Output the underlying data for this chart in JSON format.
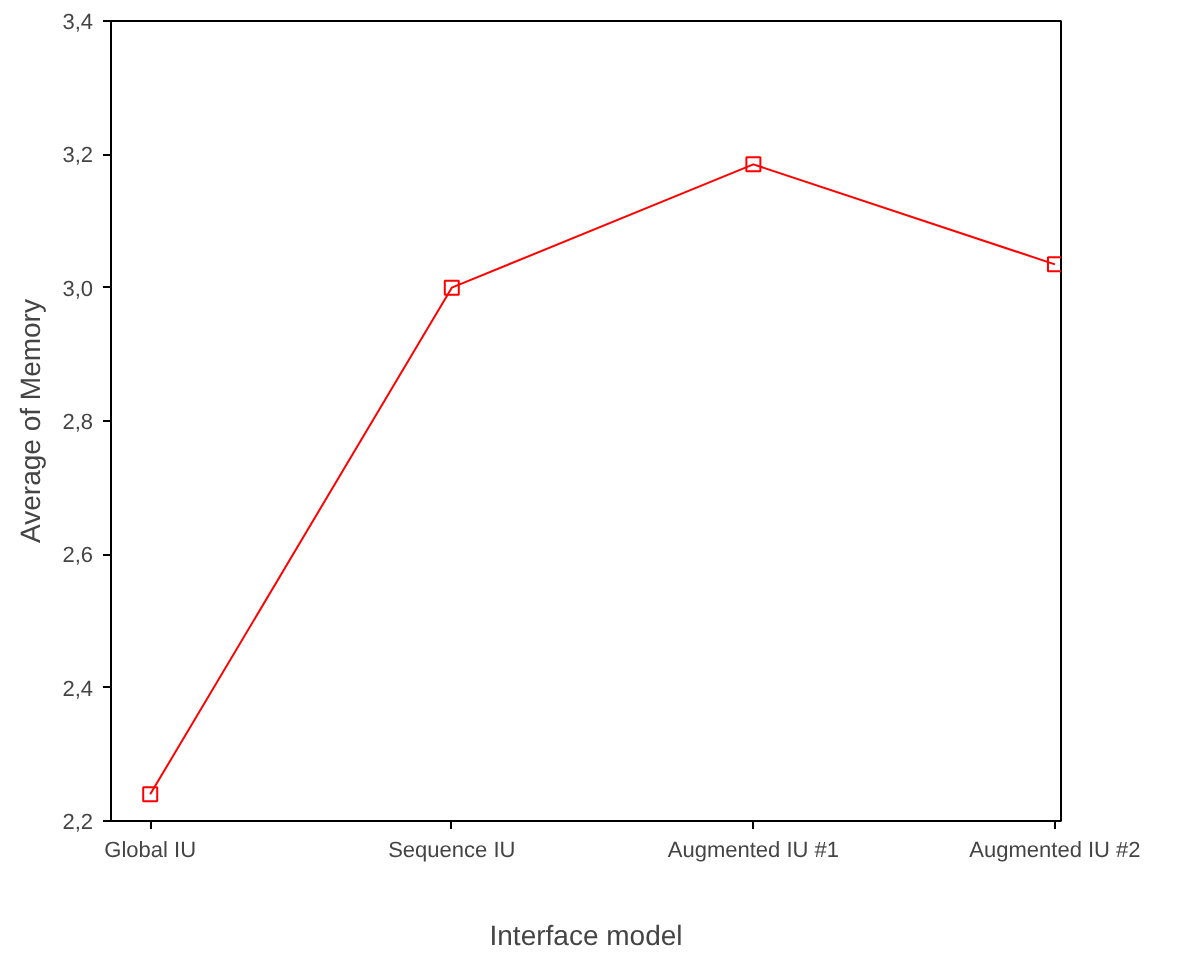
{
  "chart_data": {
    "type": "line",
    "xlabel": "Interface model",
    "ylabel": "Average of Memory",
    "categories": [
      "Global IU",
      "Sequence IU",
      "Augmented IU #1",
      "Augmented IU #2"
    ],
    "series": [
      {
        "color": "#ff0000",
        "values": [
          2.24,
          3.0,
          3.185,
          3.035
        ]
      }
    ],
    "ylim": [
      2.2,
      3.4
    ],
    "yticks": [
      {
        "value": 2.2,
        "label": "2,2"
      },
      {
        "value": 2.4,
        "label": "2,4"
      },
      {
        "value": 2.6,
        "label": "2,6"
      },
      {
        "value": 2.8,
        "label": "2,8"
      },
      {
        "value": 3.0,
        "label": "3,0"
      },
      {
        "value": 3.2,
        "label": "3,2"
      },
      {
        "value": 3.4,
        "label": "3,4"
      }
    ],
    "grid": false,
    "marker": "square",
    "line_style": "solid"
  }
}
